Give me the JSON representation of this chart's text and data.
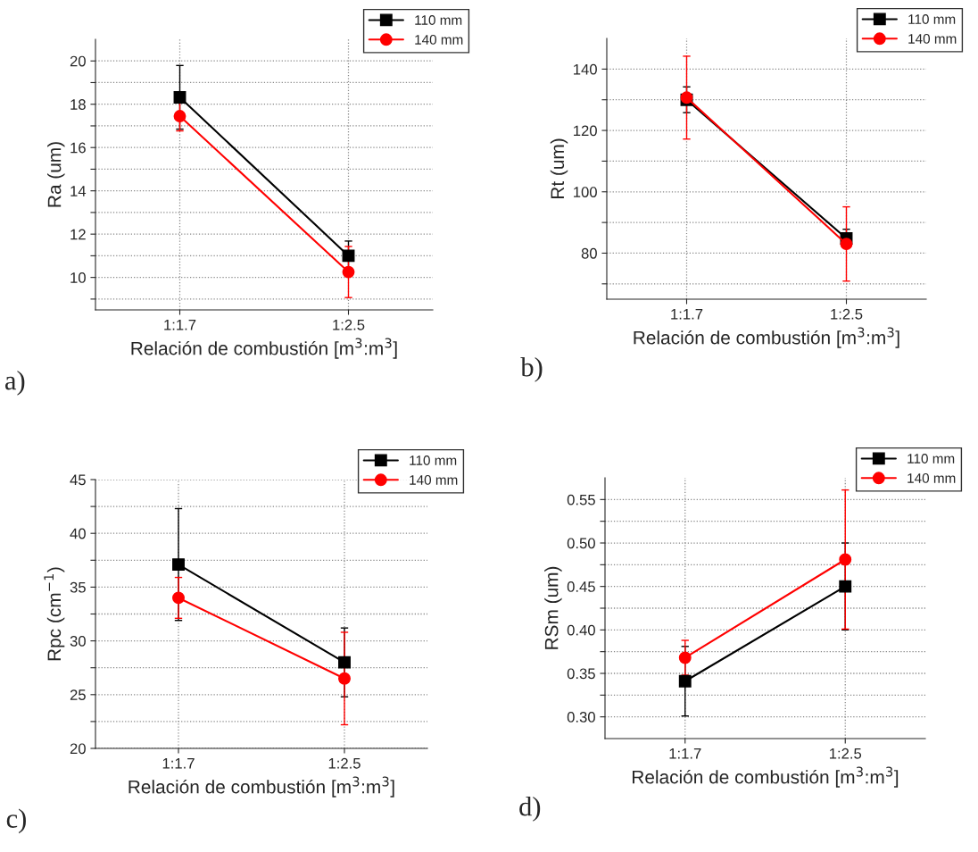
{
  "chart_data": [
    {
      "type": "line",
      "categories": [
        "1:1.7",
        "1:2.5"
      ],
      "xlabel": "Relación de combustión [m$^{3}$:m$^{3}$]",
      "ylabel": "Ra (um)",
      "ylim": [
        8.5,
        21
      ],
      "yticks": [
        {
          "value": 9,
          "label": null
        },
        10,
        {
          "value": 11,
          "label": null
        },
        12,
        {
          "value": 13,
          "label": null
        },
        14,
        {
          "value": 15,
          "label": null
        },
        16,
        {
          "value": 17,
          "label": null
        },
        18,
        {
          "value": 19,
          "label": null
        },
        20
      ],
      "grid": true,
      "legend": "top right",
      "annotations": [
        "a)"
      ],
      "series": [
        {
          "name": "110 mm",
          "color": "#000000",
          "marker": "square",
          "values": [
            18.32,
            11.0
          ],
          "errors": [
            1.47,
            0.68
          ]
        },
        {
          "name": "140 mm",
          "color": "#ff0000",
          "marker": "circle",
          "values": [
            17.45,
            10.25
          ],
          "errors": [
            0.68,
            1.18
          ]
        }
      ]
    },
    {
      "type": "line",
      "categories": [
        "1:1.7",
        "1:2.5"
      ],
      "xlabel": "Relación de combustión [m$^{3}$:m$^{3}$]",
      "ylabel": "Rt (um)",
      "ylim": [
        65,
        150
      ],
      "yticks": [
        {
          "value": 70,
          "label": null
        },
        80,
        {
          "value": 90,
          "label": null
        },
        100,
        {
          "value": 110,
          "label": null
        },
        120,
        {
          "value": 130,
          "label": null
        },
        140
      ],
      "grid": true,
      "legend": "top right",
      "annotations": [
        "b)"
      ],
      "series": [
        {
          "name": "110 mm",
          "color": "#000000",
          "marker": "square",
          "values": [
            130,
            84.8
          ],
          "errors": [
            4.2,
            3
          ]
        },
        {
          "name": "140 mm",
          "color": "#ff0000",
          "marker": "circle",
          "values": [
            130.7,
            83.0
          ],
          "errors": [
            13.5,
            12.1
          ]
        }
      ]
    },
    {
      "type": "line",
      "categories": [
        "1:1.7",
        "1:2.5"
      ],
      "xlabel": "Relación de combustión [m$^{3}$:m$^{3}$]",
      "ylabel": "Rpc (cm$^{−1}$)",
      "ylim": [
        20,
        45
      ],
      "yticks": [
        20,
        {
          "value": 22.5,
          "label": null
        },
        25,
        {
          "value": 27.5,
          "label": null
        },
        30,
        {
          "value": 32.5,
          "label": null
        },
        35,
        {
          "value": 37.5,
          "label": null
        },
        40,
        {
          "value": 42.5,
          "label": null
        },
        45
      ],
      "grid": true,
      "legend": "top right",
      "annotations": [
        "c)"
      ],
      "series": [
        {
          "name": "110 mm",
          "color": "#000000",
          "marker": "square",
          "values": [
            37.1,
            28.0
          ],
          "errors": [
            5.2,
            3.2
          ]
        },
        {
          "name": "140 mm",
          "color": "#ff0000",
          "marker": "circle",
          "values": [
            34.0,
            26.5
          ],
          "errors": [
            1.9,
            4.3
          ]
        }
      ]
    },
    {
      "type": "line",
      "categories": [
        "1:1.7",
        "1:2.5"
      ],
      "xlabel": "Relación de combustión [m$^{3}$:m$^{3}$]",
      "ylabel": "RSm (um)",
      "ylim": [
        0.275,
        0.575
      ],
      "yticks": [
        {
          "value": 0.3,
          "label": "0.30"
        },
        {
          "value": 0.325,
          "label": null
        },
        {
          "value": 0.35,
          "label": "0.35"
        },
        {
          "value": 0.375,
          "label": null
        },
        {
          "value": 0.4,
          "label": "0.40"
        },
        {
          "value": 0.425,
          "label": null
        },
        {
          "value": 0.45,
          "label": "0.45"
        },
        {
          "value": 0.475,
          "label": null
        },
        {
          "value": 0.5,
          "label": "0.50"
        },
        {
          "value": 0.525,
          "label": null
        },
        {
          "value": 0.55,
          "label": "0.55"
        }
      ],
      "grid": true,
      "legend": "top right",
      "annotations": [
        "d)"
      ],
      "series": [
        {
          "name": "110 mm",
          "color": "#000000",
          "marker": "square",
          "values": [
            0.341,
            0.45
          ],
          "errors": [
            0.04,
            0.05
          ]
        },
        {
          "name": "140 mm",
          "color": "#ff0000",
          "marker": "circle",
          "values": [
            0.368,
            0.481
          ],
          "errors": [
            0.02,
            0.08
          ]
        }
      ]
    }
  ]
}
